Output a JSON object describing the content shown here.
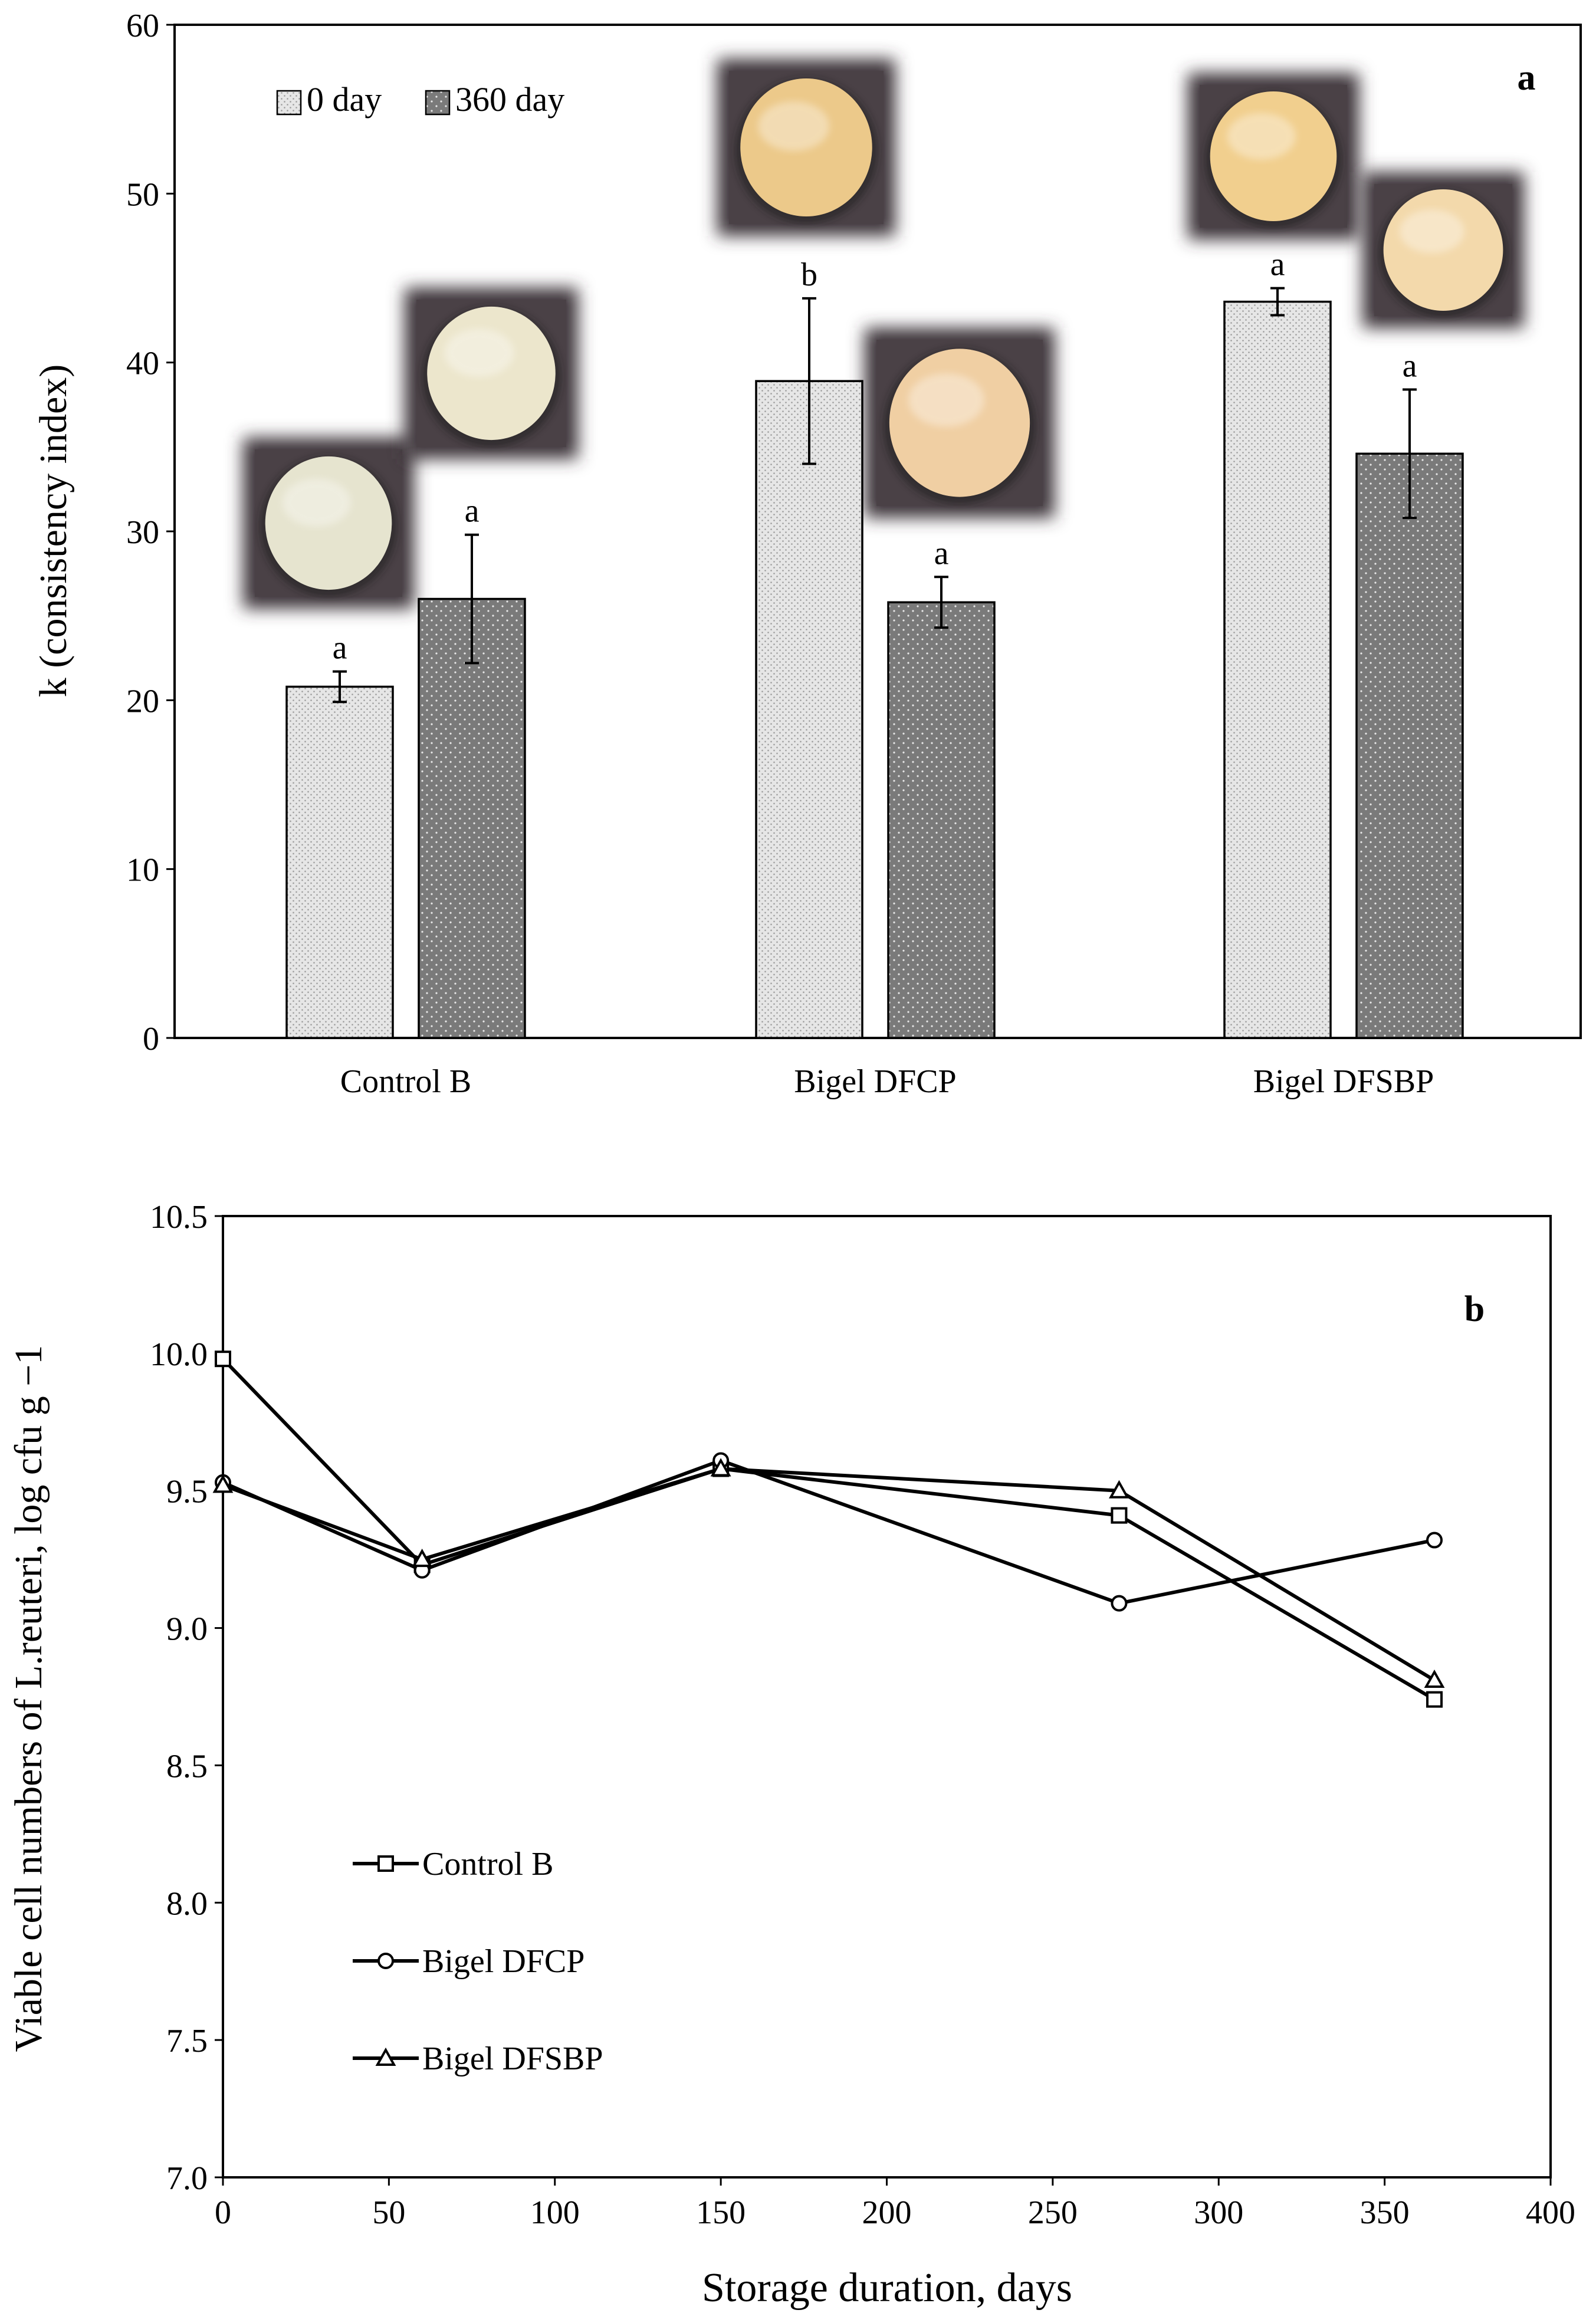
{
  "chart_data": [
    {
      "type": "bar",
      "panel_label": "a",
      "title": "",
      "xlabel": "",
      "ylabel": "k (consistency index)",
      "ylim": [
        0,
        60
      ],
      "yticks": [
        "0",
        "10",
        "20",
        "30",
        "40",
        "50",
        "60"
      ],
      "categories": [
        "Control B",
        "Bigel DFCP",
        "Bigel DFSBP"
      ],
      "legend_position": "top-left",
      "series": [
        {
          "name": "0 day",
          "values": [
            20.8,
            38.9,
            43.6
          ],
          "errors": [
            0.9,
            4.9,
            0.8
          ],
          "letters": [
            "a",
            "b",
            "a"
          ],
          "color": "#e4e4e4"
        },
        {
          "name": "360 day",
          "values": [
            26.0,
            25.8,
            34.6
          ],
          "errors": [
            3.8,
            1.5,
            3.8
          ],
          "letters": [
            "a",
            "a",
            "a"
          ],
          "color": "#7d7d7d"
        }
      ]
    },
    {
      "type": "line",
      "panel_label": "b",
      "title": "",
      "xlabel": "Storage duration, days",
      "ylabel": "Viable cell numbers of L.reuteri, log cfu g −1",
      "xlim": [
        0,
        400
      ],
      "ylim": [
        7.0,
        10.5
      ],
      "xticks": [
        "0",
        "50",
        "100",
        "150",
        "200",
        "250",
        "300",
        "350",
        "400"
      ],
      "yticks": [
        "7.0",
        "7.5",
        "8.0",
        "8.5",
        "9.0",
        "9.5",
        "10.0",
        "10.5"
      ],
      "legend_position": "bottom-left",
      "series": [
        {
          "name": "Control B",
          "marker": "square",
          "x": [
            0,
            60,
            150,
            270,
            365
          ],
          "y": [
            9.98,
            9.23,
            9.58,
            9.41,
            8.74
          ]
        },
        {
          "name": "Bigel DFCP",
          "marker": "circle",
          "x": [
            0,
            60,
            150,
            270,
            365
          ],
          "y": [
            9.53,
            9.21,
            9.61,
            9.09,
            9.32
          ]
        },
        {
          "name": "Bigel DFSBP",
          "marker": "triangle",
          "x": [
            0,
            60,
            150,
            270,
            365
          ],
          "y": [
            9.52,
            9.25,
            9.58,
            9.5,
            8.81
          ]
        }
      ]
    }
  ]
}
